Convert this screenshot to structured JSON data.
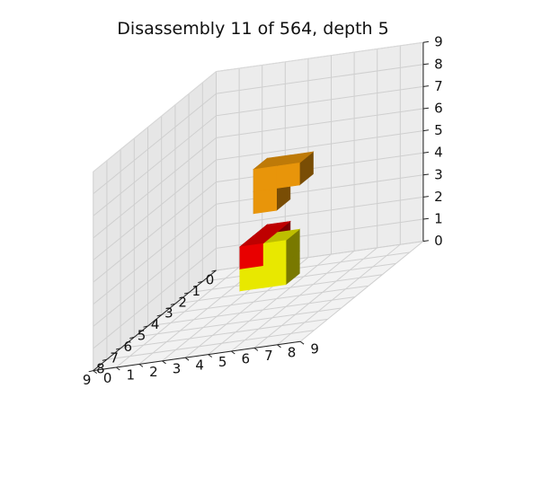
{
  "chart_data": {
    "type": "voxels-3d",
    "title": "Disassembly 11 of 564, depth 5",
    "grid": true,
    "axes": {
      "x": {
        "range": [
          0,
          9
        ],
        "ticks": [
          "0",
          "1",
          "2",
          "3",
          "4",
          "5",
          "6",
          "7",
          "8",
          "9"
        ]
      },
      "y": {
        "range": [
          0,
          9
        ],
        "ticks": [
          "0",
          "1",
          "2",
          "3",
          "4",
          "5",
          "6",
          "7",
          "8",
          "9"
        ]
      },
      "z": {
        "range": [
          0,
          9
        ],
        "ticks": [
          "0",
          "1",
          "2",
          "3",
          "4",
          "5",
          "6",
          "7",
          "8",
          "9"
        ]
      }
    },
    "pieces": [
      {
        "name": "orange",
        "color": "#E8950A",
        "cubes": [
          [
            3,
            4,
            4
          ],
          [
            3,
            4,
            5
          ],
          [
            3,
            5,
            5
          ]
        ]
      },
      {
        "name": "red",
        "color": "#E80000",
        "cubes": [
          [
            3,
            4,
            1
          ],
          [
            3,
            4,
            2
          ],
          [
            4,
            4,
            2
          ]
        ]
      },
      {
        "name": "yellow",
        "color": "#E8E800",
        "cubes": [
          [
            4,
            4,
            1
          ],
          [
            4,
            5,
            1
          ],
          [
            4,
            5,
            2
          ]
        ]
      }
    ]
  }
}
